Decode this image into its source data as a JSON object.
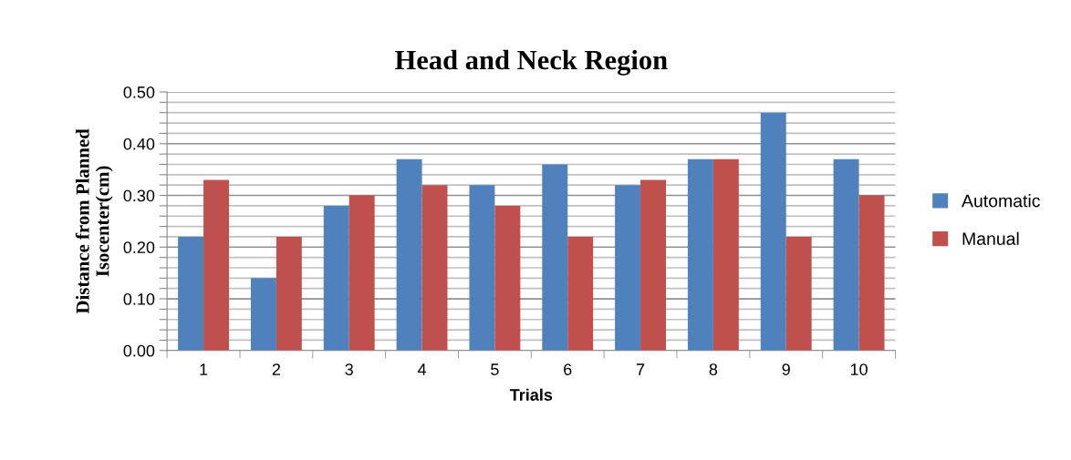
{
  "chart_data": {
    "type": "bar",
    "title": "Head and Neck Region",
    "xlabel": "Trials",
    "ylabel": "Distance from Planned\nIsocenter(cm)",
    "categories": [
      "1",
      "2",
      "3",
      "4",
      "5",
      "6",
      "7",
      "8",
      "9",
      "10"
    ],
    "series": [
      {
        "name": "Automatic",
        "color": "#4f81bd",
        "values": [
          0.22,
          0.14,
          0.28,
          0.37,
          0.32,
          0.36,
          0.32,
          0.37,
          0.46,
          0.37
        ]
      },
      {
        "name": "Manual",
        "color": "#c0504d",
        "values": [
          0.33,
          0.22,
          0.3,
          0.32,
          0.28,
          0.22,
          0.33,
          0.37,
          0.22,
          0.3
        ]
      }
    ],
    "ylim": [
      0,
      0.5
    ],
    "yticks": [
      {
        "value": 0,
        "label": "0.00"
      },
      {
        "value": 0.02,
        "label": null
      },
      {
        "value": 0.04,
        "label": null
      },
      {
        "value": 0.06,
        "label": null
      },
      {
        "value": 0.08,
        "label": null
      },
      {
        "value": 0.1,
        "label": "0.10"
      },
      {
        "value": 0.12,
        "label": null
      },
      {
        "value": 0.14,
        "label": null
      },
      {
        "value": 0.16,
        "label": null
      },
      {
        "value": 0.18,
        "label": null
      },
      {
        "value": 0.2,
        "label": "0.20"
      },
      {
        "value": 0.22,
        "label": null
      },
      {
        "value": 0.24,
        "label": null
      },
      {
        "value": 0.26,
        "label": null
      },
      {
        "value": 0.28,
        "label": null
      },
      {
        "value": 0.3,
        "label": "0.30"
      },
      {
        "value": 0.32,
        "label": null
      },
      {
        "value": 0.34,
        "label": null
      },
      {
        "value": 0.36,
        "label": null
      },
      {
        "value": 0.38,
        "label": null
      },
      {
        "value": 0.4,
        "label": "0.40"
      },
      {
        "value": 0.42,
        "label": null
      },
      {
        "value": 0.44,
        "label": null
      },
      {
        "value": 0.46,
        "label": null
      },
      {
        "value": 0.48,
        "label": null
      },
      {
        "value": 0.5,
        "label": "0.50"
      }
    ],
    "grid": "y",
    "legend": "right"
  }
}
